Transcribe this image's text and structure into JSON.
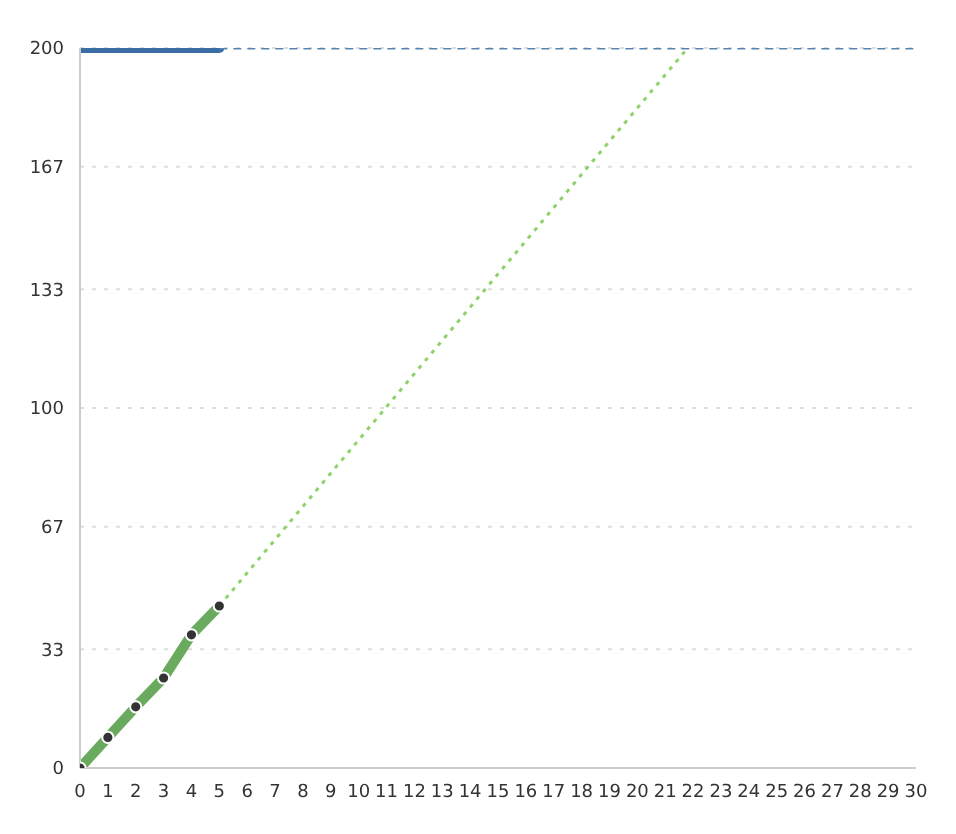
{
  "chart_data": {
    "type": "line",
    "xlim": [
      0,
      30
    ],
    "xticks": [
      0,
      1,
      2,
      3,
      4,
      5,
      6,
      7,
      8,
      9,
      10,
      11,
      12,
      13,
      14,
      15,
      16,
      17,
      18,
      19,
      20,
      21,
      22,
      23,
      24,
      25,
      26,
      27,
      28,
      29,
      30
    ],
    "ylim": [
      0,
      200
    ],
    "yticks": [
      0,
      33,
      67,
      100,
      133,
      167,
      200
    ],
    "grid": "y",
    "series": [
      {
        "color": "#3a6ea5",
        "x": [
          0,
          5
        ],
        "values": [
          200,
          200
        ],
        "line_style": "solid"
      },
      {
        "color": "#5a84b0",
        "x": [
          5,
          30
        ],
        "values": [
          200,
          200
        ],
        "line_style": "dashed"
      },
      {
        "color": "#8fd16a",
        "x": [
          5,
          21.7
        ],
        "values": [
          45,
          199
        ],
        "line_style": "dotted"
      },
      {
        "color": "#6aaa5e",
        "x": [
          0,
          1,
          2,
          3,
          4,
          5
        ],
        "values": [
          0,
          8.5,
          17,
          25,
          37,
          45
        ],
        "line_style": "solid",
        "marker": "circle"
      }
    ]
  }
}
